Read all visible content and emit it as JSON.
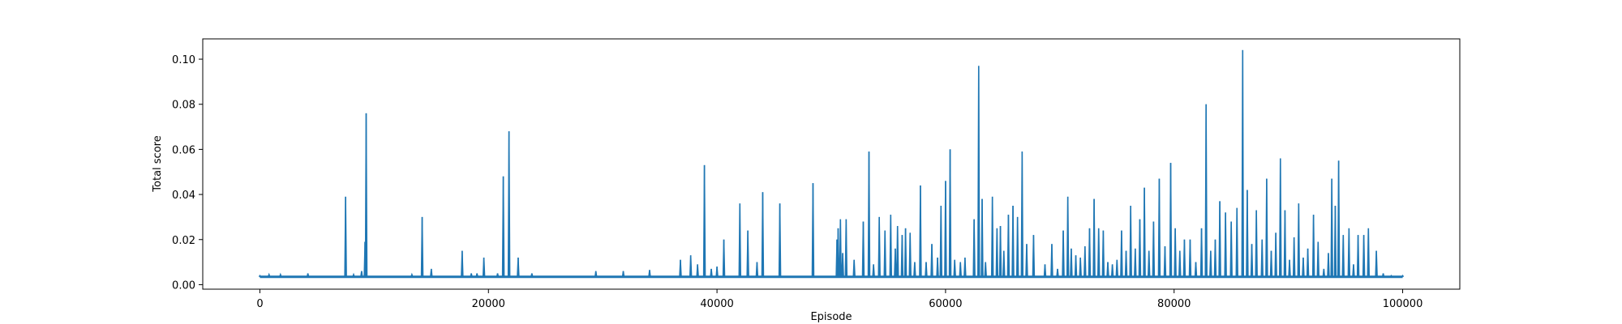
{
  "chart_data": {
    "type": "line",
    "title": "",
    "xlabel": "Episode",
    "ylabel": "Total score",
    "xlim": [
      -5000,
      105000
    ],
    "ylim": [
      -0.002,
      0.109
    ],
    "grid": false,
    "legend": "none",
    "line_color": "#1f77b4",
    "xticks": [
      0,
      20000,
      40000,
      60000,
      80000,
      100000
    ],
    "xtick_labels": [
      "0",
      "20000",
      "40000",
      "60000",
      "80000",
      "100000"
    ],
    "yticks": [
      0.0,
      0.02,
      0.04,
      0.06,
      0.08,
      0.1
    ],
    "ytick_labels": [
      "0.00",
      "0.02",
      "0.04",
      "0.06",
      "0.08",
      "0.10"
    ],
    "baseline": 0.0035,
    "series": [
      {
        "x": [
          0,
          800,
          1800,
          4200,
          7500,
          8200,
          8900,
          9200,
          9300,
          13300,
          14200,
          15000,
          17700,
          18500,
          19000,
          19600,
          20800,
          21300,
          21800,
          22600,
          23800,
          29400,
          31800,
          34100,
          36800,
          37700,
          38300,
          38900,
          39500,
          40000,
          40600,
          42000,
          42700,
          43500,
          44000,
          45500,
          48400,
          50500,
          50600,
          50800,
          51000,
          51300,
          52000,
          52800,
          53300,
          53700,
          54200,
          54700,
          55200,
          55600,
          55800,
          56200,
          56500,
          56900,
          57300,
          57800,
          58300,
          58800,
          59300,
          59600,
          60000,
          60400,
          60800,
          61300,
          61700,
          62500,
          62900,
          63200,
          63500,
          64100,
          64500,
          64800,
          65100,
          65500,
          65900,
          66300,
          66700,
          67100,
          67700,
          68700,
          69300,
          69800,
          70300,
          70700,
          71000,
          71400,
          71800,
          72200,
          72600,
          73000,
          73400,
          73800,
          74200,
          74600,
          75000,
          75400,
          75800,
          76200,
          76600,
          77000,
          77400,
          77800,
          78200,
          78700,
          79200,
          79700,
          80100,
          80500,
          80900,
          81400,
          81900,
          82400,
          82800,
          83200,
          83600,
          84000,
          84500,
          85000,
          85500,
          86000,
          86400,
          86800,
          87200,
          87700,
          88100,
          88500,
          88900,
          89300,
          89700,
          90100,
          90500,
          90900,
          91300,
          91700,
          92200,
          92600,
          93100,
          93500,
          93800,
          94100,
          94400,
          94800,
          95300,
          95700,
          96100,
          96600,
          97000,
          97700,
          98300,
          99000,
          100000
        ],
        "y": [
          0.004,
          0.0045,
          0.0045,
          0.005,
          0.039,
          0.0045,
          0.006,
          0.019,
          0.076,
          0.0045,
          0.03,
          0.007,
          0.015,
          0.005,
          0.005,
          0.012,
          0.005,
          0.048,
          0.068,
          0.012,
          0.005,
          0.006,
          0.006,
          0.0065,
          0.011,
          0.013,
          0.009,
          0.053,
          0.007,
          0.008,
          0.02,
          0.036,
          0.024,
          0.01,
          0.041,
          0.036,
          0.045,
          0.02,
          0.025,
          0.029,
          0.014,
          0.029,
          0.011,
          0.028,
          0.059,
          0.009,
          0.03,
          0.024,
          0.031,
          0.016,
          0.026,
          0.022,
          0.025,
          0.023,
          0.01,
          0.044,
          0.01,
          0.018,
          0.012,
          0.035,
          0.046,
          0.06,
          0.011,
          0.01,
          0.012,
          0.029,
          0.097,
          0.038,
          0.01,
          0.039,
          0.025,
          0.026,
          0.015,
          0.031,
          0.035,
          0.03,
          0.059,
          0.018,
          0.022,
          0.009,
          0.018,
          0.007,
          0.024,
          0.039,
          0.016,
          0.013,
          0.012,
          0.017,
          0.025,
          0.038,
          0.025,
          0.024,
          0.01,
          0.009,
          0.011,
          0.024,
          0.015,
          0.035,
          0.016,
          0.029,
          0.043,
          0.015,
          0.028,
          0.047,
          0.017,
          0.054,
          0.025,
          0.015,
          0.02,
          0.02,
          0.01,
          0.025,
          0.08,
          0.015,
          0.02,
          0.037,
          0.032,
          0.028,
          0.034,
          0.104,
          0.042,
          0.018,
          0.033,
          0.02,
          0.047,
          0.015,
          0.023,
          0.056,
          0.033,
          0.011,
          0.021,
          0.036,
          0.012,
          0.016,
          0.031,
          0.019,
          0.007,
          0.014,
          0.047,
          0.035,
          0.055,
          0.022,
          0.025,
          0.009,
          0.022,
          0.022,
          0.025,
          0.015,
          0.005,
          0.004,
          0.004
        ]
      }
    ]
  }
}
